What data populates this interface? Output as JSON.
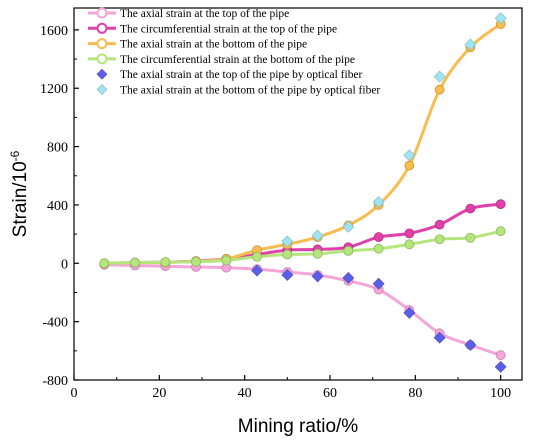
{
  "chart_data": {
    "type": "line",
    "xlabel": "Mining ratio/%",
    "ylabel": "Strain/10",
    "ylabel_superscript": "-6",
    "xlim": [
      0,
      105
    ],
    "ylim": [
      -800,
      1750
    ],
    "xticks": [
      0,
      20,
      40,
      60,
      80,
      100
    ],
    "yticks": [
      -800,
      -400,
      0,
      400,
      800,
      1200,
      1600
    ],
    "grid": false,
    "legend_position": "top-left",
    "series": [
      {
        "name": "The axial strain at the top of the pipe",
        "kind": "line",
        "marker": "circle",
        "color": "#f4a6d8",
        "x": [
          7.1,
          14.3,
          21.4,
          28.6,
          35.7,
          42.9,
          50,
          57.1,
          64.3,
          71.4,
          78.6,
          85.7,
          92.9,
          100
        ],
        "y": [
          -10,
          -15,
          -20,
          -25,
          -30,
          -40,
          -60,
          -80,
          -120,
          -180,
          -320,
          -480,
          -560,
          -630
        ]
      },
      {
        "name": "The circumferential strain at the top of the pipe",
        "kind": "line",
        "marker": "circle",
        "color": "#e040a8",
        "x": [
          7.1,
          14.3,
          21.4,
          28.6,
          35.7,
          42.9,
          50,
          57.1,
          64.3,
          71.4,
          78.6,
          85.7,
          92.9,
          100
        ],
        "y": [
          0,
          5,
          8,
          15,
          30,
          60,
          90,
          95,
          110,
          180,
          205,
          265,
          375,
          405
        ]
      },
      {
        "name": "The axial strain at the bottom of the pipe",
        "kind": "line",
        "marker": "circle",
        "color": "#f9bc4f",
        "x": [
          7.1,
          14.3,
          21.4,
          28.6,
          35.7,
          42.9,
          50,
          57.1,
          64.3,
          71.4,
          78.6,
          85.7,
          92.9,
          100
        ],
        "y": [
          0,
          5,
          5,
          15,
          30,
          90,
          130,
          180,
          260,
          400,
          670,
          1190,
          1480,
          1640
        ]
      },
      {
        "name": "The circumferential strain at the bottom of the pipe",
        "kind": "line",
        "marker": "circle",
        "color": "#b5e57d",
        "x": [
          7.1,
          14.3,
          21.4,
          28.6,
          35.7,
          42.9,
          50,
          57.1,
          64.3,
          71.4,
          78.6,
          85.7,
          92.9,
          100
        ],
        "y": [
          0,
          5,
          8,
          10,
          20,
          45,
          60,
          65,
          85,
          100,
          130,
          165,
          175,
          220
        ]
      },
      {
        "name": "The axial strain at the top of the pipe by optical fiber",
        "kind": "scatter",
        "marker": "diamond",
        "color": "#5b5ee8",
        "x": [
          42.9,
          50,
          57.1,
          64.3,
          71.4,
          78.6,
          85.7,
          92.9,
          100
        ],
        "y": [
          -50,
          -80,
          -90,
          -100,
          -140,
          -340,
          -510,
          -560,
          -710
        ]
      },
      {
        "name": "The axial strain at the bottom of the pipe by optical fiber",
        "kind": "scatter",
        "marker": "diamond",
        "color": "#9ee4f2",
        "x": [
          50,
          57.1,
          64.3,
          71.4,
          78.6,
          85.7,
          92.9,
          100
        ],
        "y": [
          150,
          190,
          250,
          420,
          740,
          1280,
          1500,
          1680
        ]
      }
    ]
  }
}
